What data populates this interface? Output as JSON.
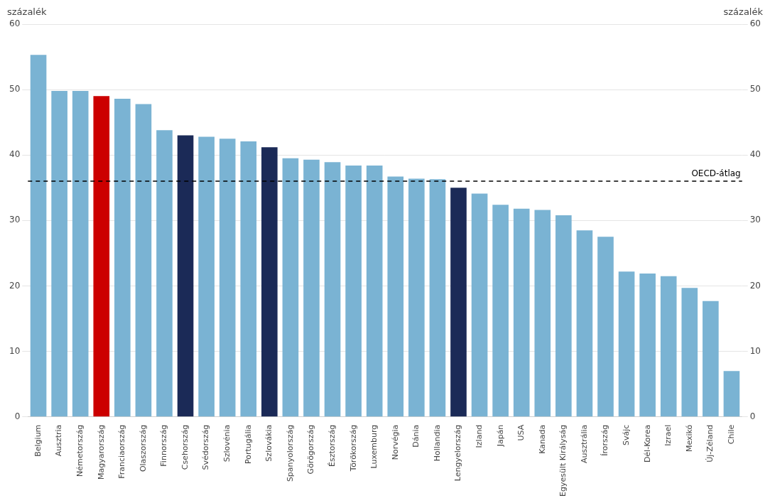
{
  "chart_data": {
    "type": "bar",
    "categories": [
      "Belgium",
      "Ausztria",
      "Németország",
      "Magyarország",
      "Franciaország",
      "Olaszország",
      "Finnország",
      "Csehország",
      "Svédország",
      "Szlovénia",
      "Portugália",
      "Szlovákia",
      "Spanyolország",
      "Görögország",
      "Észtország",
      "Törökország",
      "Luxemburg",
      "Norvégia",
      "Dánia",
      "Hollandia",
      "Lengyelország",
      "Izland",
      "Japán",
      "USA",
      "Kanada",
      "Egyesült Királyság",
      "Ausztrália",
      "Írország",
      "Svájc",
      "Dél-Korea",
      "Izrael",
      "Mexikó",
      "Új-Zéland",
      "Chile"
    ],
    "values": [
      55.3,
      49.8,
      49.8,
      49.0,
      48.6,
      47.8,
      43.8,
      43.0,
      42.8,
      42.5,
      42.1,
      41.2,
      39.5,
      39.3,
      38.9,
      38.4,
      38.4,
      36.7,
      36.4,
      36.3,
      35.0,
      34.1,
      32.4,
      31.8,
      31.6,
      30.8,
      28.5,
      27.5,
      22.2,
      21.9,
      21.5,
      19.7,
      17.7,
      7.0
    ],
    "colors": [
      "#7ab3d3",
      "#7ab3d3",
      "#7ab3d3",
      "#cc0000",
      "#7ab3d3",
      "#7ab3d3",
      "#7ab3d3",
      "#1b2a57",
      "#7ab3d3",
      "#7ab3d3",
      "#7ab3d3",
      "#1b2a57",
      "#7ab3d3",
      "#7ab3d3",
      "#7ab3d3",
      "#7ab3d3",
      "#7ab3d3",
      "#7ab3d3",
      "#7ab3d3",
      "#7ab3d3",
      "#1b2a57",
      "#7ab3d3",
      "#7ab3d3",
      "#7ab3d3",
      "#7ab3d3",
      "#7ab3d3",
      "#7ab3d3",
      "#7ab3d3",
      "#7ab3d3",
      "#7ab3d3",
      "#7ab3d3",
      "#7ab3d3",
      "#7ab3d3",
      "#7ab3d3"
    ],
    "ylabel": "százalék",
    "y2label": "százalék",
    "ylim": [
      0,
      60
    ],
    "yticks": [
      0,
      10,
      20,
      30,
      40,
      50,
      60
    ],
    "y2lim": [
      0,
      60
    ],
    "y2ticks": [
      0,
      10,
      20,
      30,
      40,
      50,
      60
    ],
    "annotations": [
      {
        "text": "OECD-átlag",
        "y": 36.0
      }
    ],
    "grid": true
  }
}
